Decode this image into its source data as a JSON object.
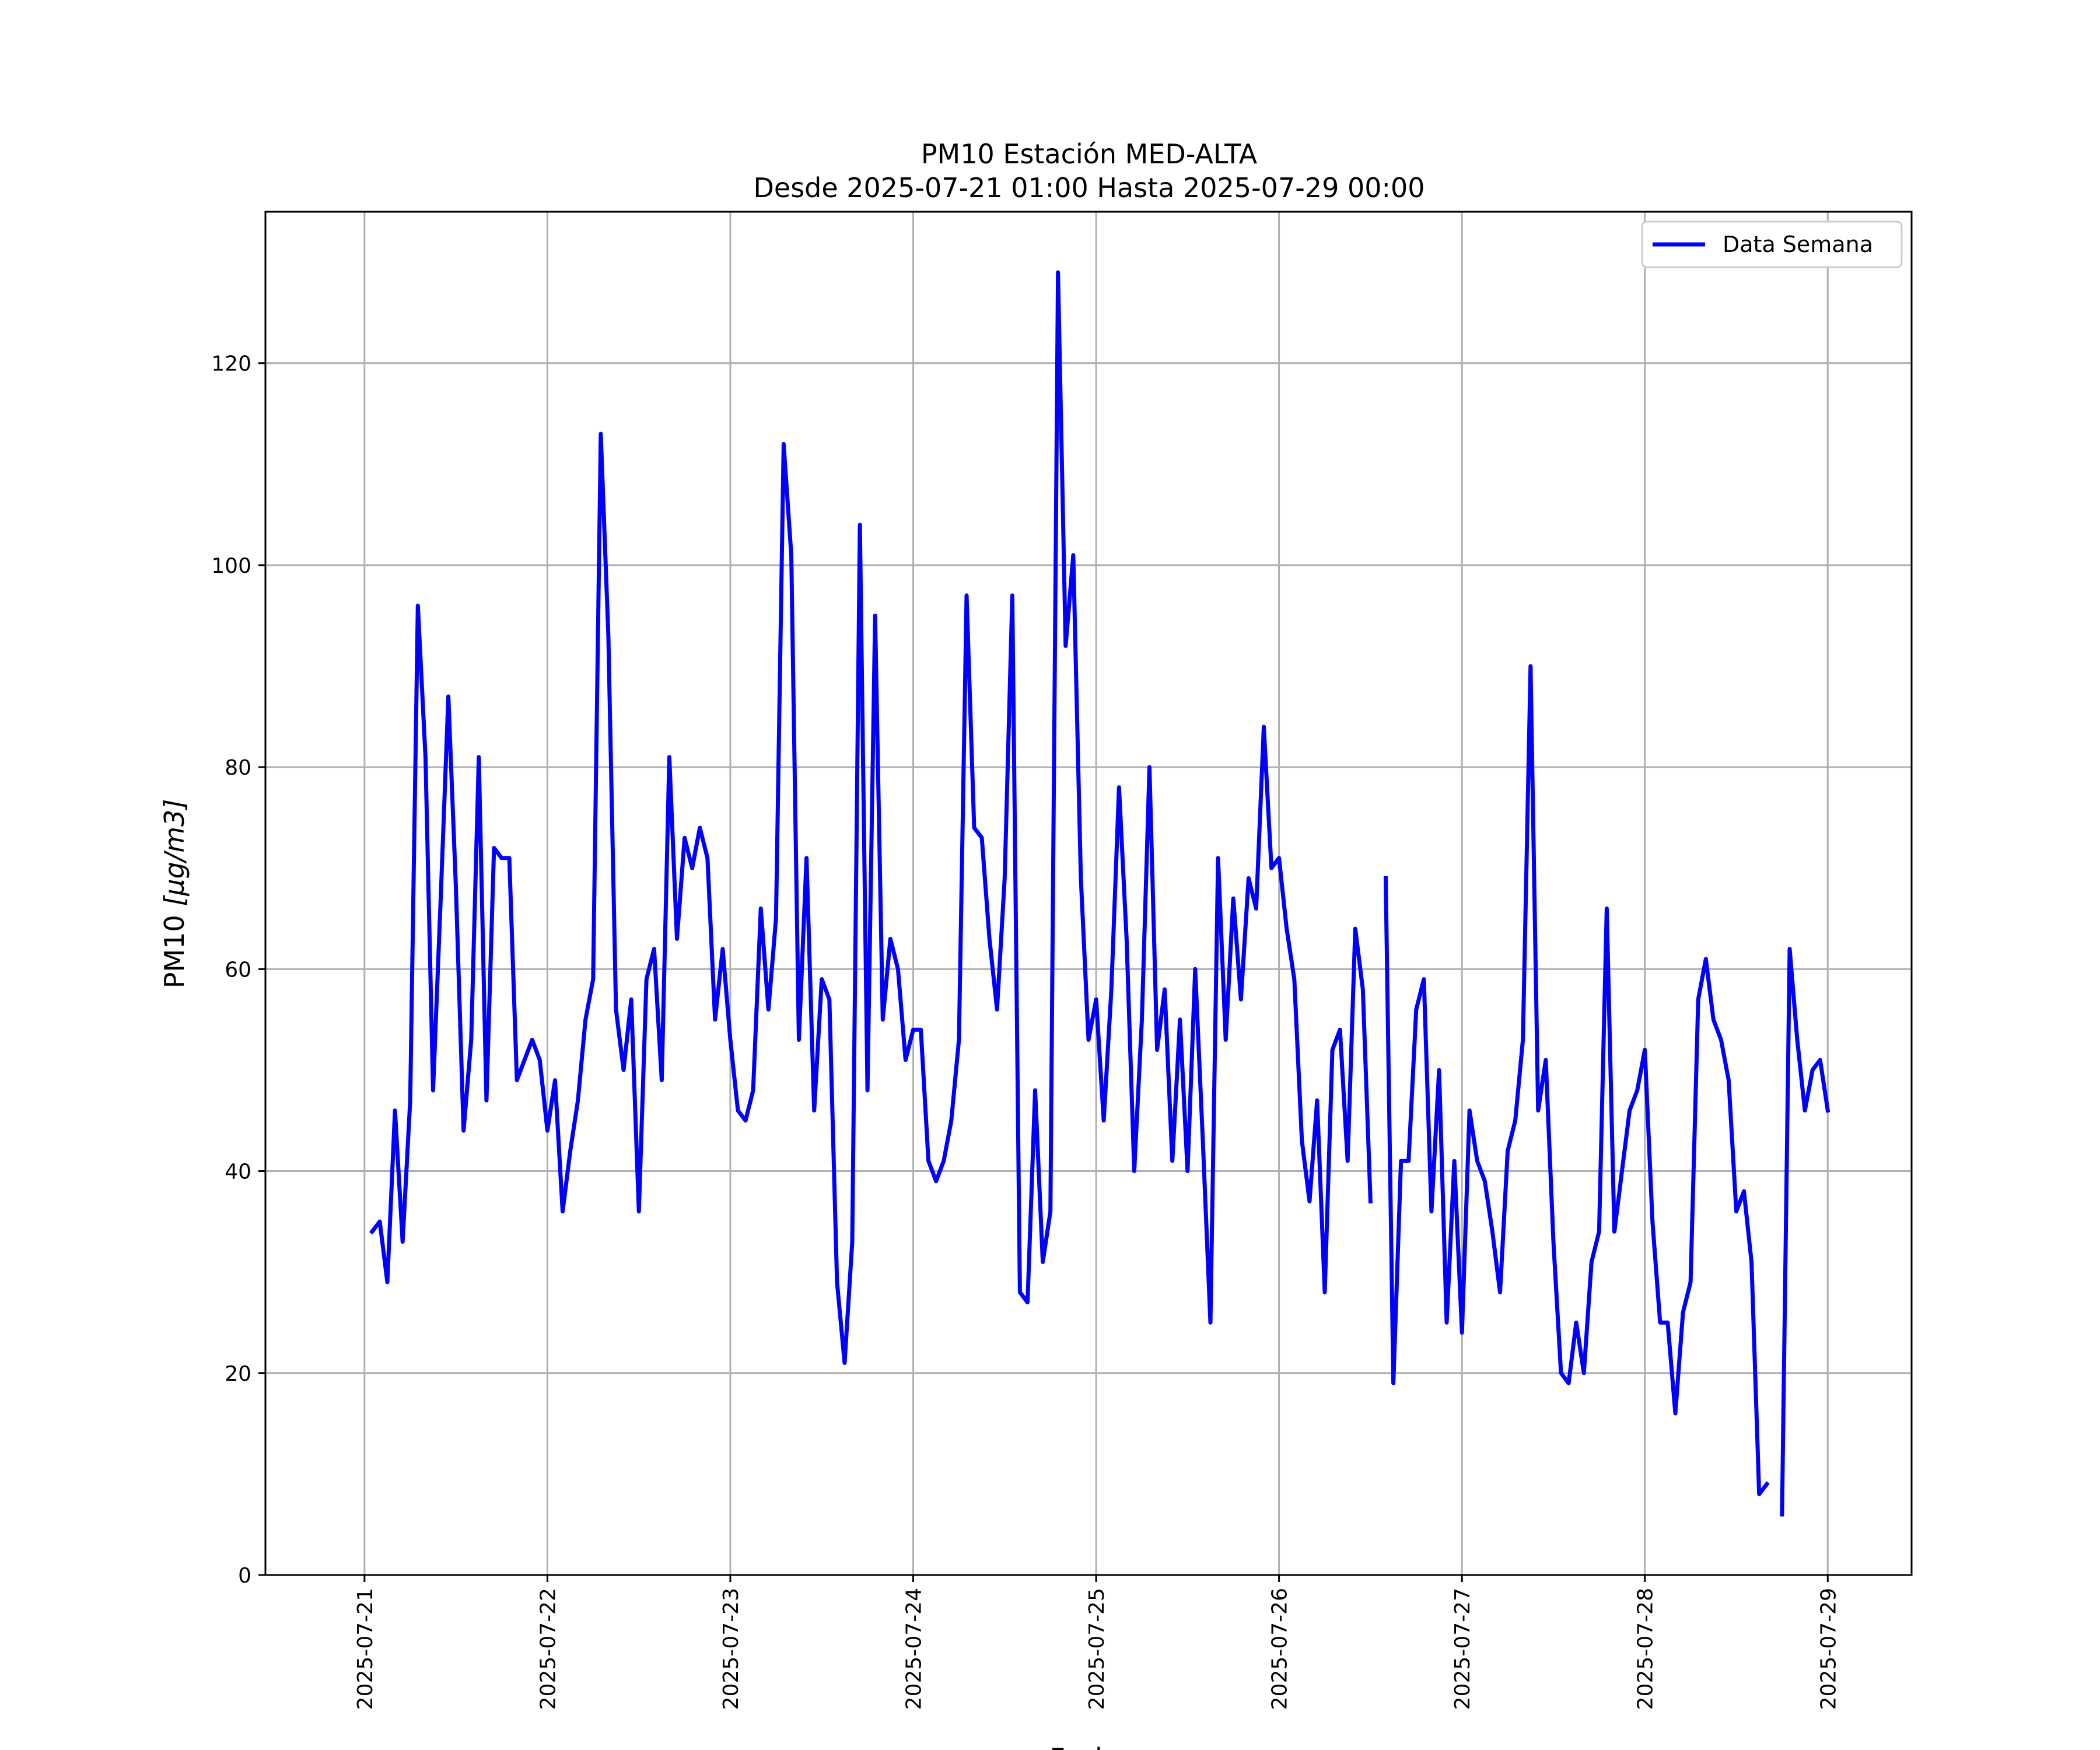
{
  "chart_data": {
    "type": "line",
    "title": "PM10 Estación MED-ALTA",
    "subtitle": "Desde 2025-07-21 01:00 Hasta 2025-07-29 00:00",
    "xlabel": "Fecha",
    "ylabel_main": "PM10",
    "ylabel_unit": "[μg/m3]",
    "x_tick_labels": [
      "2025-07-21",
      "2025-07-22",
      "2025-07-23",
      "2025-07-24",
      "2025-07-25",
      "2025-07-26",
      "2025-07-27",
      "2025-07-28",
      "2025-07-29"
    ],
    "y_ticks": [
      0,
      20,
      40,
      60,
      80,
      100,
      120
    ],
    "xlim": [
      "2025-07-20 11:00",
      "2025-07-29 11:00"
    ],
    "ylim": [
      0,
      135
    ],
    "grid": true,
    "legend_position": "top-right",
    "series": [
      {
        "name": "Data Semana",
        "color": "#0000ff",
        "start": "2025-07-21 01:00",
        "interval_hours": 1,
        "values": [
          34,
          35,
          29,
          46,
          33,
          47,
          96,
          81,
          48,
          67,
          87,
          68,
          44,
          53,
          81,
          47,
          72,
          71,
          71,
          49,
          51,
          53,
          51,
          44,
          49,
          36,
          42,
          47,
          55,
          59,
          113,
          93,
          56,
          50,
          57,
          36,
          59,
          62,
          49,
          81,
          63,
          73,
          70,
          74,
          71,
          55,
          62,
          53,
          46,
          45,
          48,
          66,
          56,
          65,
          112,
          101,
          53,
          71,
          46,
          59,
          57,
          29,
          21,
          33,
          104,
          48,
          95,
          55,
          63,
          60,
          51,
          54,
          54,
          41,
          39,
          41,
          45,
          53,
          97,
          74,
          73,
          63,
          56,
          69,
          97,
          28,
          27,
          48,
          31,
          36,
          129,
          92,
          101,
          69,
          53,
          57,
          45,
          58,
          78,
          63,
          40,
          55,
          80,
          52,
          58,
          41,
          55,
          40,
          60,
          43,
          25,
          71,
          53,
          67,
          57,
          69,
          66,
          84,
          70,
          71,
          64,
          59,
          43,
          37,
          47,
          28,
          52,
          54,
          41,
          64,
          58,
          37,
          null,
          69,
          19,
          41,
          41,
          56,
          59,
          36,
          50,
          25,
          41,
          24,
          46,
          41,
          39,
          34,
          28,
          42,
          45,
          53,
          90,
          46,
          51,
          33,
          20,
          19,
          25,
          20,
          31,
          34,
          66,
          34,
          40,
          46,
          48,
          52,
          35,
          25,
          25,
          16,
          26,
          29,
          57,
          61,
          55,
          53,
          49,
          36,
          38,
          31,
          8,
          9,
          null,
          6,
          62,
          53,
          46,
          50,
          51,
          46
        ]
      }
    ]
  }
}
